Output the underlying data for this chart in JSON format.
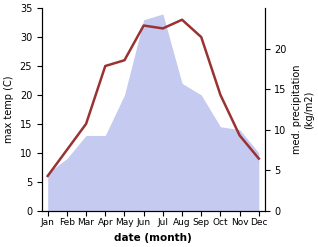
{
  "months": [
    "Jan",
    "Feb",
    "Mar",
    "Apr",
    "May",
    "Jun",
    "Jul",
    "Aug",
    "Sep",
    "Oct",
    "Nov",
    "Dec"
  ],
  "temp": [
    6,
    10.5,
    15,
    25,
    26,
    32,
    31.5,
    33,
    30,
    20,
    13,
    9
  ],
  "precip": [
    6.5,
    9,
    13,
    13,
    20,
    33,
    34,
    22,
    20,
    14.5,
    14,
    10
  ],
  "temp_ylim": [
    0,
    35
  ],
  "precip_ylim": [
    0,
    35
  ],
  "precip_yticks_vals": [
    0,
    7,
    14,
    21,
    28
  ],
  "precip_yticks_labels": [
    "0",
    "5",
    "10",
    "15",
    "20"
  ],
  "temp_yticks": [
    0,
    5,
    10,
    15,
    20,
    25,
    30,
    35
  ],
  "fill_color": "#c5caf0",
  "fill_alpha": 0.75,
  "line_color": "#993333",
  "line_width": 1.8,
  "xlabel": "date (month)",
  "ylabel_left": "max temp (C)",
  "ylabel_right": "med. precipitation\n(kg/m2)",
  "title": ""
}
